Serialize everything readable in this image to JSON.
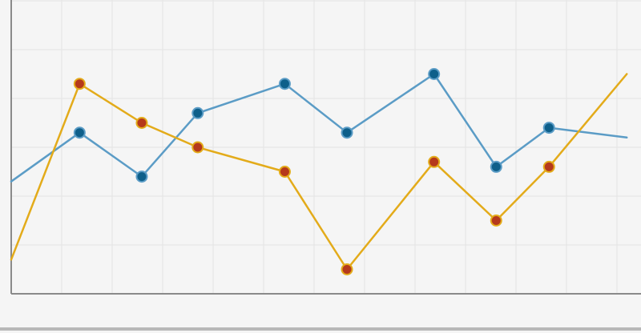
{
  "chart_data": {
    "type": "line",
    "title": "",
    "xlabel": "",
    "ylabel": "",
    "grid": true,
    "xlim": [
      0,
      10
    ],
    "ylim": [
      0,
      6
    ],
    "series": [
      {
        "color": "#5b9cc6",
        "marker_color": "#0e5f8a",
        "points": [
          [
            0,
            2.3
          ],
          [
            1.1,
            3.3
          ],
          [
            2.1,
            2.4
          ],
          [
            3.0,
            3.7
          ],
          [
            4.4,
            4.3
          ],
          [
            5.4,
            3.3
          ],
          [
            6.8,
            4.5
          ],
          [
            7.8,
            2.6
          ],
          [
            8.65,
            3.4
          ],
          [
            9.9,
            3.2
          ]
        ],
        "markers": [
          1,
          2,
          3,
          4,
          5,
          6,
          7,
          8
        ]
      },
      {
        "color": "#e3ab1a",
        "marker_color": "#b5391c",
        "points": [
          [
            0,
            0.7
          ],
          [
            1.1,
            4.3
          ],
          [
            2.1,
            3.5
          ],
          [
            3.0,
            3.0
          ],
          [
            4.4,
            2.5
          ],
          [
            5.4,
            0.5
          ],
          [
            6.8,
            2.7
          ],
          [
            7.8,
            1.5
          ],
          [
            8.65,
            2.6
          ],
          [
            9.9,
            4.5
          ]
        ],
        "markers": [
          1,
          2,
          3,
          4,
          5,
          6,
          7,
          8
        ]
      }
    ]
  }
}
